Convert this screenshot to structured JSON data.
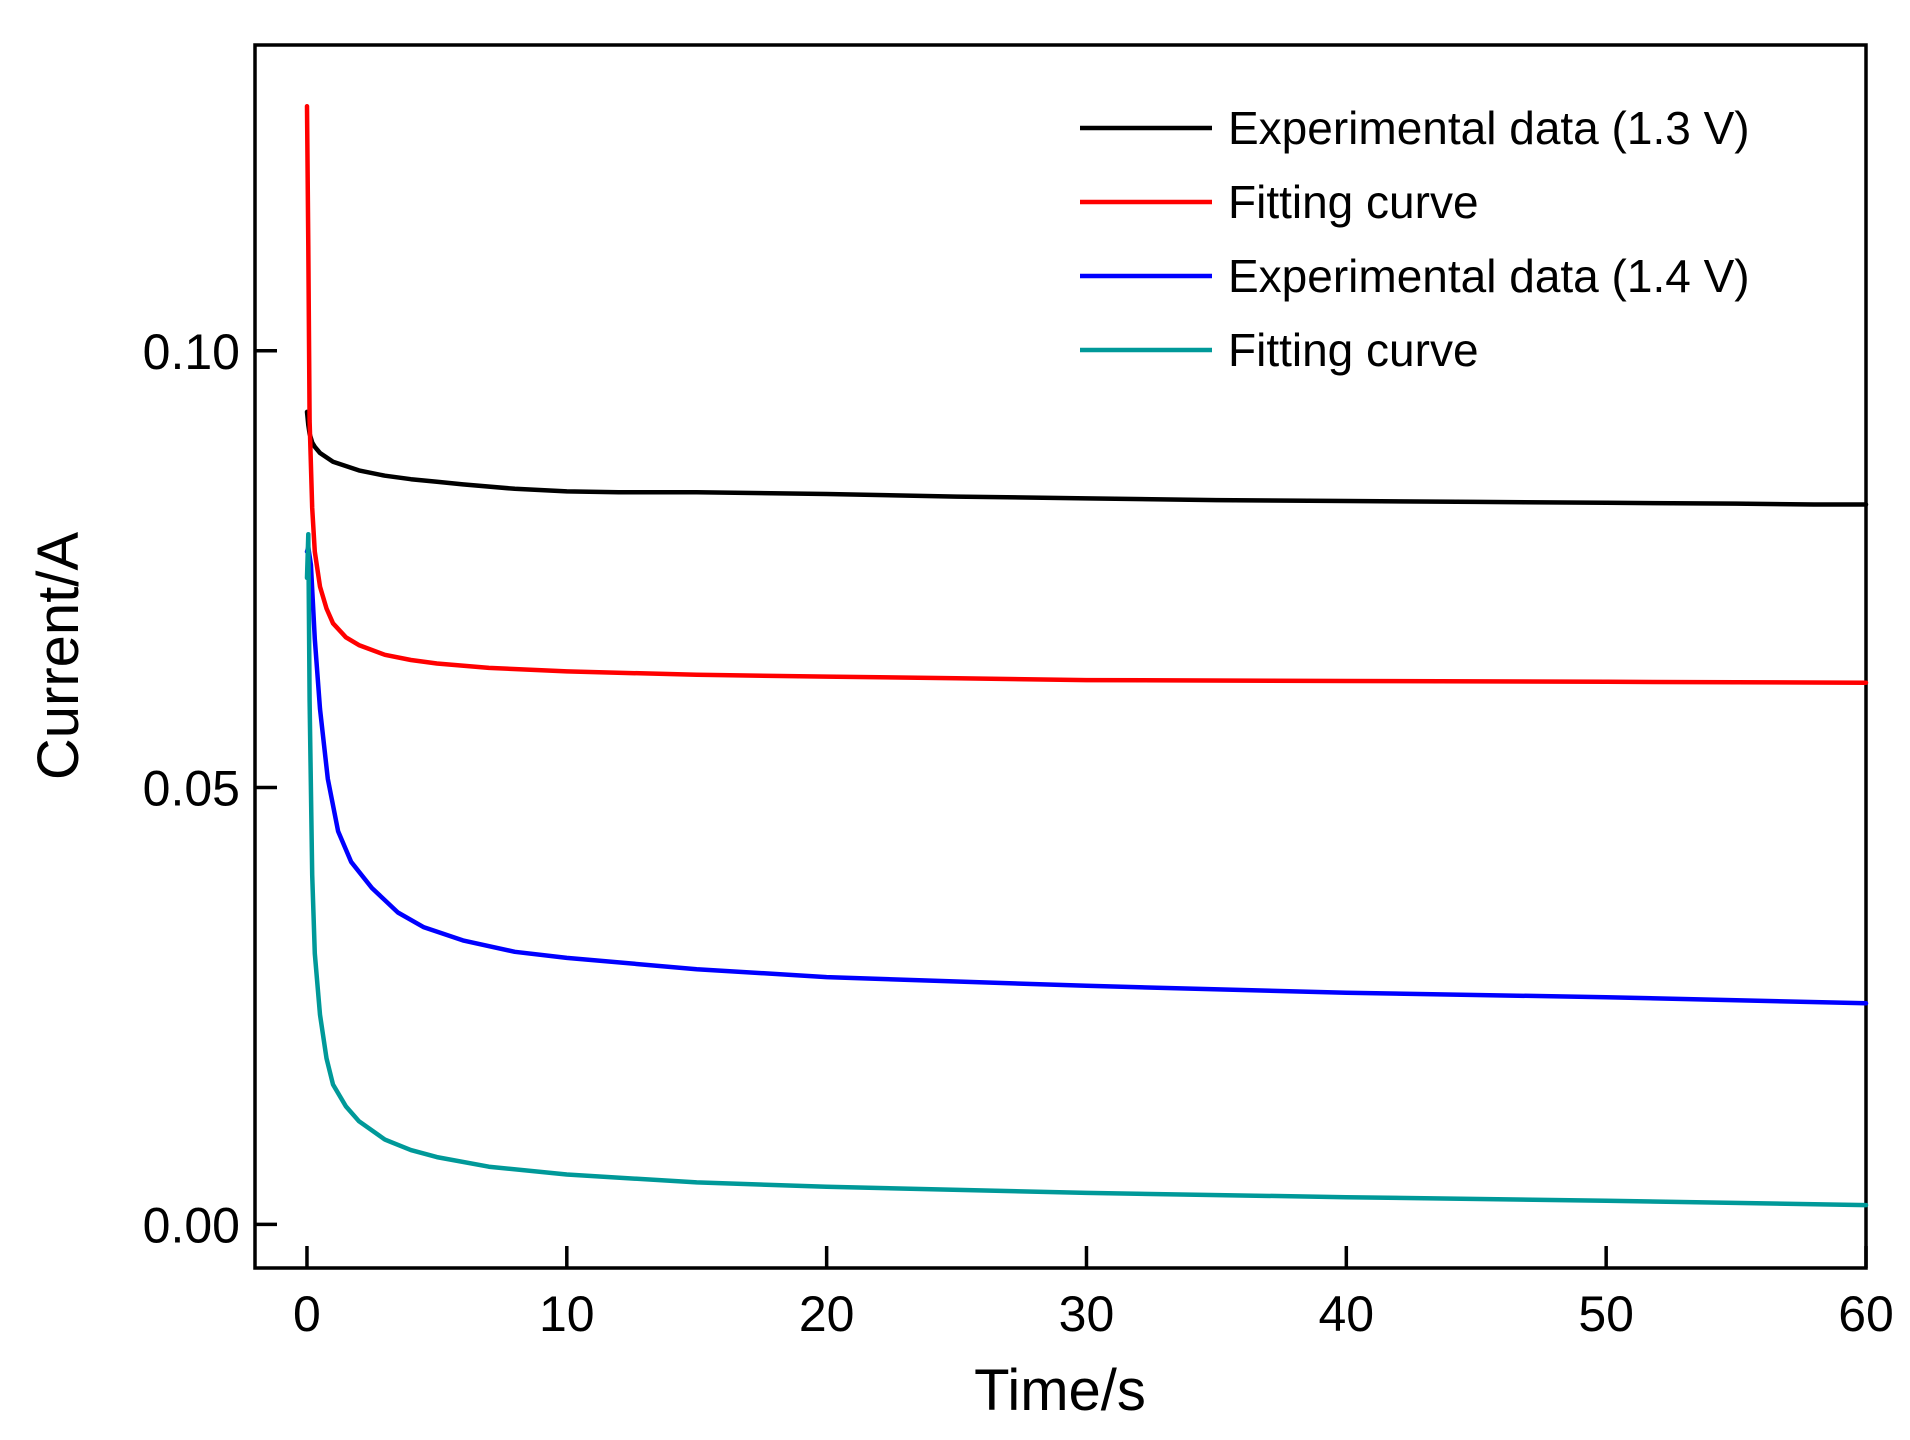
{
  "chart_data": {
    "type": "line",
    "title": "",
    "xlabel": "Time/s",
    "ylabel": "Current/A",
    "xlim": [
      -2,
      60
    ],
    "ylim": [
      -0.005,
      0.135
    ],
    "xticks": [
      0,
      10,
      20,
      30,
      40,
      50,
      60
    ],
    "xtick_labels": [
      "0",
      "10",
      "20",
      "30",
      "40",
      "50",
      "60"
    ],
    "yticks": [
      0.0,
      0.05,
      0.1
    ],
    "ytick_labels": [
      "0.00",
      "0.05",
      "0.10"
    ],
    "grid": false,
    "legend_position": "top-right",
    "series": [
      {
        "name": "Experimental data (1.3 V)",
        "color": "#000000",
        "x": [
          0,
          0.05,
          0.1,
          0.2,
          0.3,
          0.5,
          1,
          2,
          3,
          4,
          5,
          6,
          8,
          10,
          12,
          15,
          20,
          25,
          30,
          35,
          40,
          45,
          50,
          55,
          58,
          60
        ],
        "y": [
          0.093,
          0.0915,
          0.0905,
          0.0895,
          0.089,
          0.0883,
          0.0873,
          0.0863,
          0.0857,
          0.0853,
          0.085,
          0.0847,
          0.0842,
          0.0839,
          0.0838,
          0.0838,
          0.0836,
          0.0833,
          0.0831,
          0.0829,
          0.0828,
          0.0827,
          0.0826,
          0.0825,
          0.0824,
          0.0824
        ]
      },
      {
        "name": "Fitting curve",
        "color": "#ff0000",
        "x": [
          0,
          0.05,
          0.1,
          0.2,
          0.3,
          0.5,
          0.75,
          1,
          1.5,
          2,
          3,
          4,
          5,
          7,
          10,
          15,
          20,
          25,
          30,
          40,
          50,
          60
        ],
        "y": [
          0.128,
          0.112,
          0.092,
          0.082,
          0.077,
          0.073,
          0.0705,
          0.0688,
          0.0672,
          0.0663,
          0.0652,
          0.0646,
          0.0642,
          0.0637,
          0.0633,
          0.0629,
          0.0627,
          0.0625,
          0.0623,
          0.0622,
          0.0621,
          0.062
        ]
      },
      {
        "name": "Experimental data (1.4 V)",
        "color": "#0000ff",
        "x": [
          0,
          0.05,
          0.15,
          0.3,
          0.5,
          0.8,
          1.2,
          1.7,
          2.5,
          3.5,
          4.5,
          6,
          8,
          10,
          15,
          20,
          30,
          40,
          50,
          60
        ],
        "y": [
          0.077,
          0.0775,
          0.0755,
          0.067,
          0.059,
          0.051,
          0.045,
          0.0415,
          0.0385,
          0.0357,
          0.034,
          0.0325,
          0.0312,
          0.0305,
          0.0292,
          0.0283,
          0.0273,
          0.0265,
          0.026,
          0.0253
        ]
      },
      {
        "name": "Fitting curve",
        "color": "#009999",
        "x": [
          0,
          0.05,
          0.1,
          0.2,
          0.3,
          0.5,
          0.75,
          1,
          1.5,
          2,
          3,
          4,
          5,
          7,
          10,
          15,
          20,
          30,
          40,
          50,
          60
        ],
        "y": [
          0.074,
          0.079,
          0.06,
          0.04,
          0.031,
          0.024,
          0.019,
          0.016,
          0.0135,
          0.0118,
          0.0097,
          0.0085,
          0.0077,
          0.0066,
          0.0057,
          0.0048,
          0.0043,
          0.0036,
          0.0031,
          0.0027,
          0.0022
        ]
      }
    ]
  }
}
